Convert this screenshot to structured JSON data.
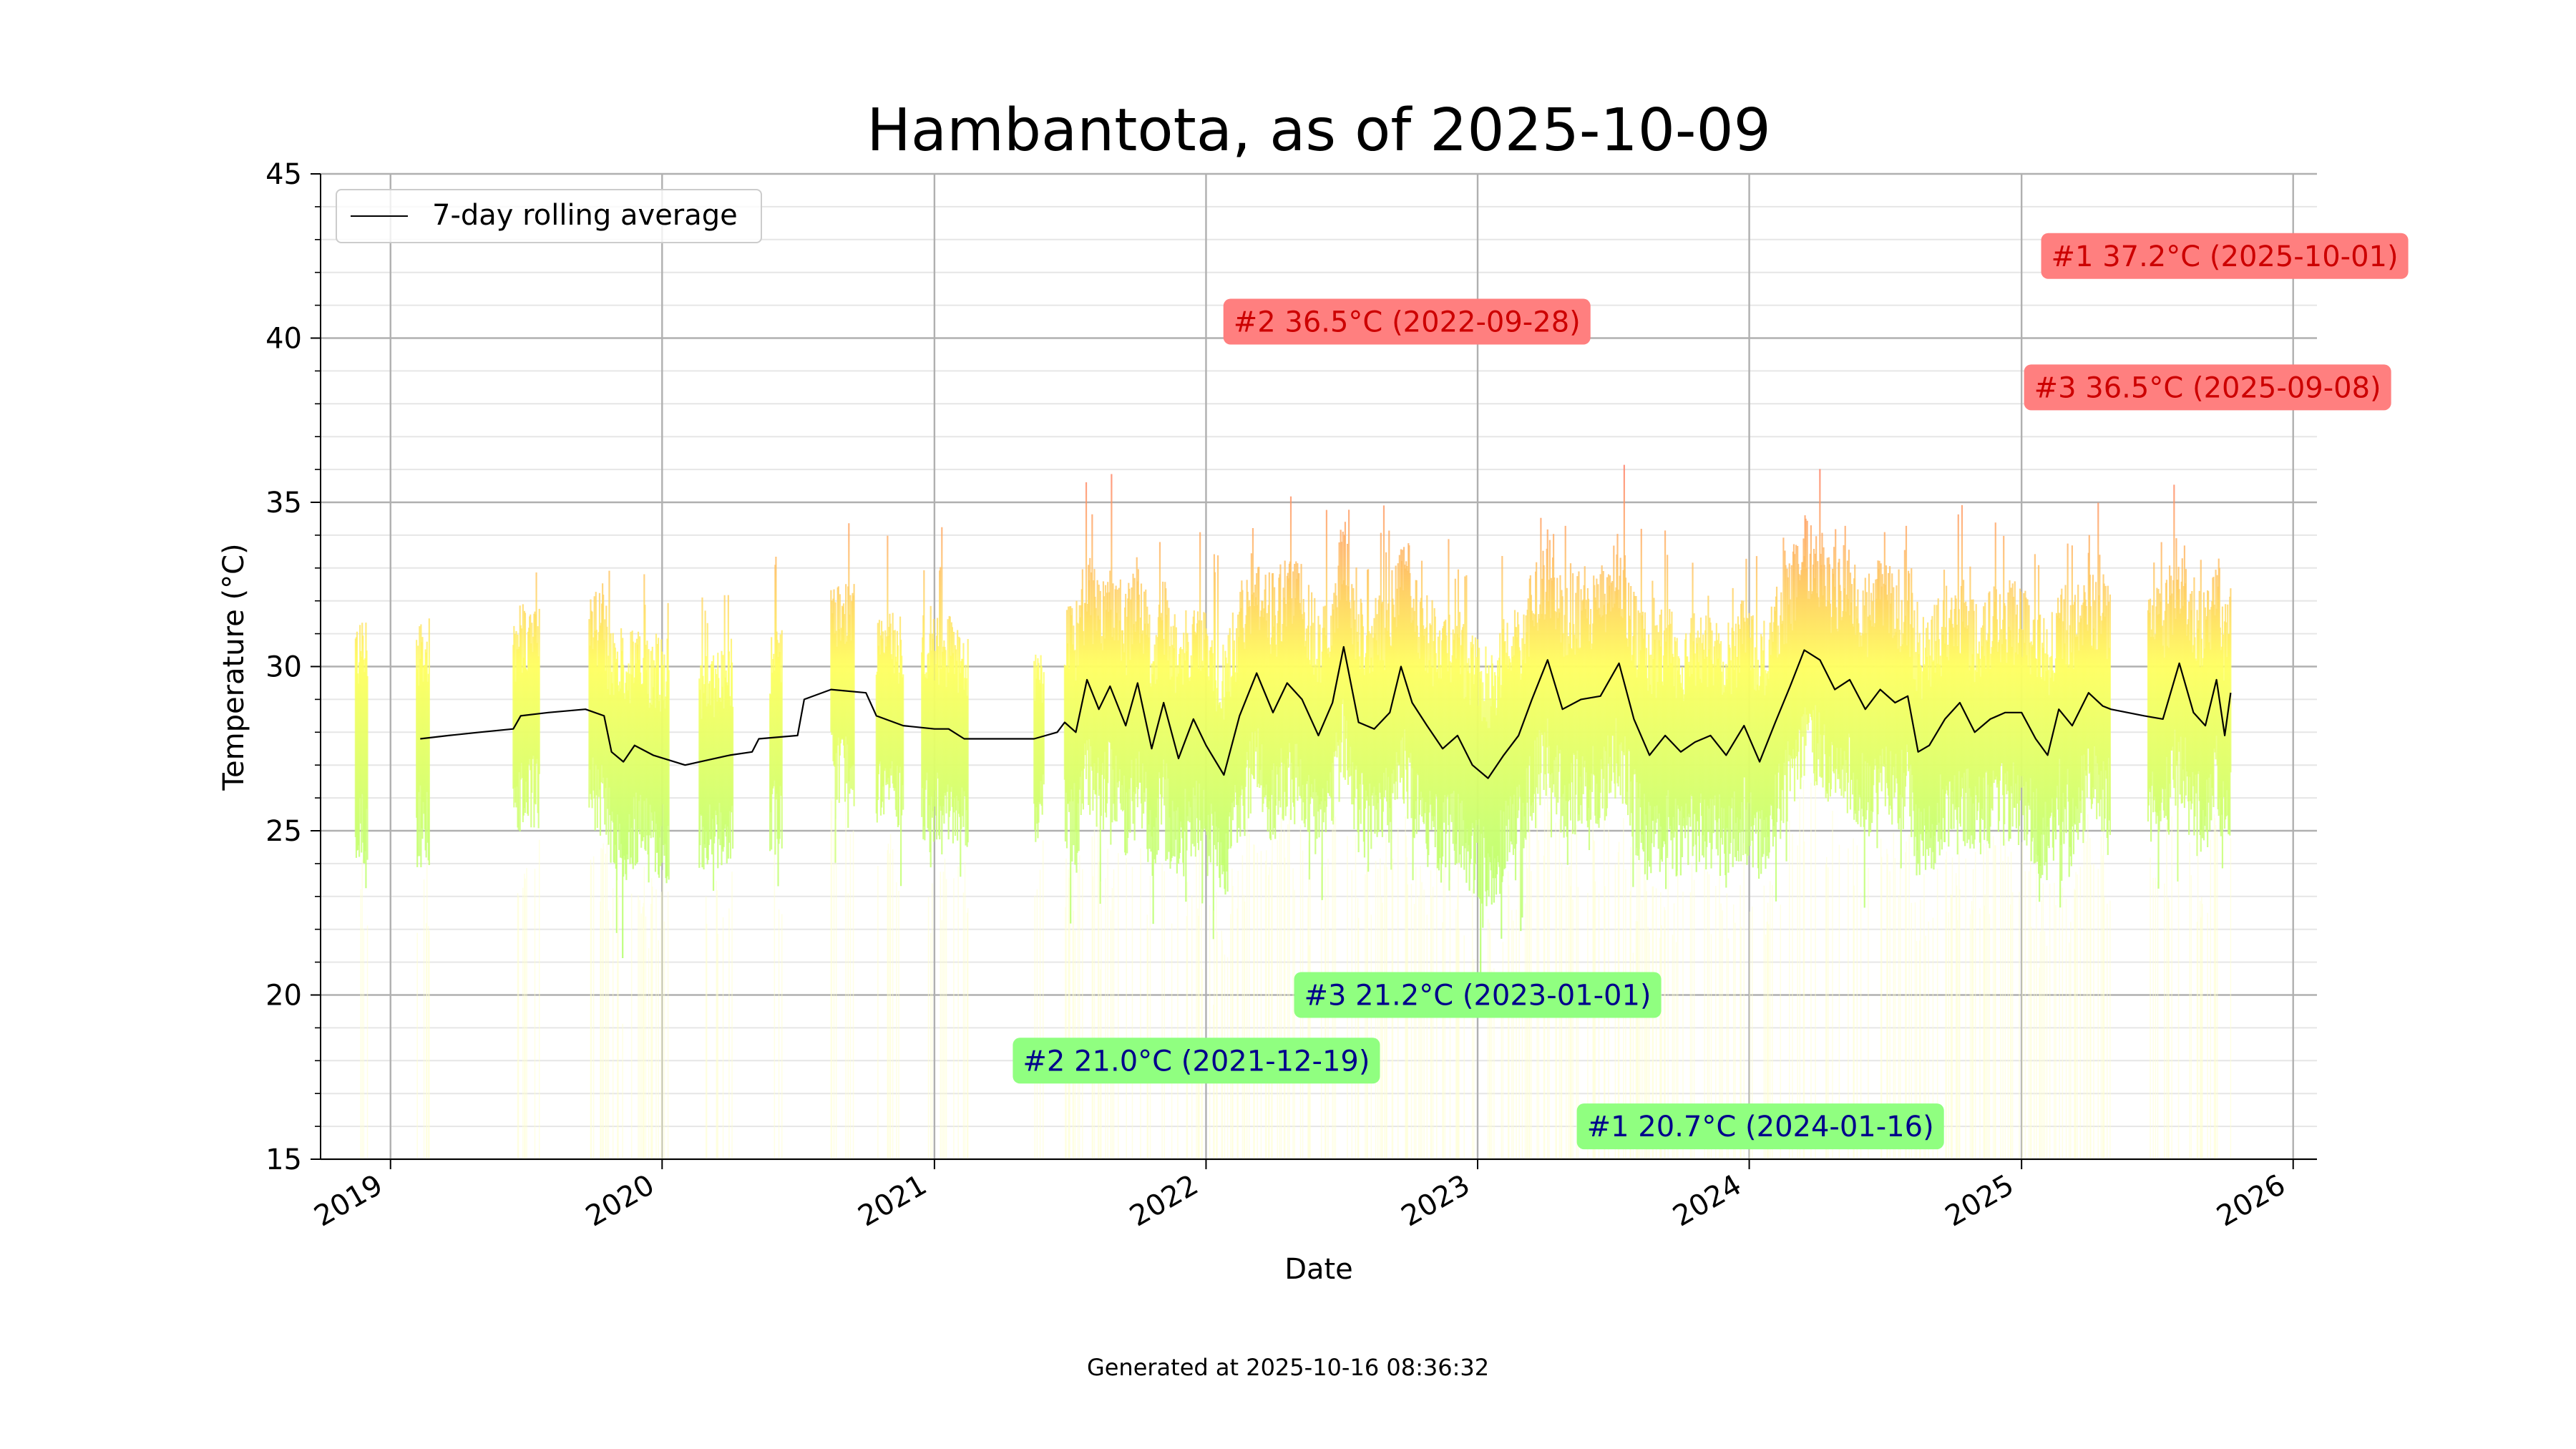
{
  "chart_data": {
    "type": "line",
    "title": "Hambantota, as of 2025-10-09",
    "xlabel": "Date",
    "ylabel": "Temperature (°C)",
    "xlim": [
      "2018-09-29",
      "2026-02-02"
    ],
    "ylim": [
      15,
      45
    ],
    "y_ticks": [
      15,
      20,
      25,
      30,
      35,
      40,
      45
    ],
    "x_ticks": [
      {
        "date": "2019-01-01",
        "label": "2019"
      },
      {
        "date": "2020-01-01",
        "label": "2020"
      },
      {
        "date": "2021-01-01",
        "label": "2021"
      },
      {
        "date": "2022-01-01",
        "label": "2022"
      },
      {
        "date": "2023-01-01",
        "label": "2023"
      },
      {
        "date": "2024-01-01",
        "label": "2024"
      },
      {
        "date": "2025-01-01",
        "label": "2025"
      },
      {
        "date": "2026-01-01",
        "label": "2026"
      }
    ],
    "grid": true,
    "legend": {
      "placement": "top-left",
      "entries": [
        "7-day rolling average"
      ]
    },
    "series": [
      {
        "name": "7-day rolling average",
        "color": "#000000",
        "points": [
          [
            "2019-02-10",
            27.8
          ],
          [
            "2019-03-20",
            27.9
          ],
          [
            "2019-05-01",
            28.0
          ],
          [
            "2019-06-15",
            28.1
          ],
          [
            "2019-06-25",
            28.5
          ],
          [
            "2019-08-01",
            28.6
          ],
          [
            "2019-09-20",
            28.7
          ],
          [
            "2019-10-15",
            28.5
          ],
          [
            "2019-10-25",
            27.4
          ],
          [
            "2019-11-10",
            27.1
          ],
          [
            "2019-11-25",
            27.6
          ],
          [
            "2019-12-20",
            27.3
          ],
          [
            "2020-02-01",
            27.0
          ],
          [
            "2020-04-01",
            27.3
          ],
          [
            "2020-05-01",
            27.4
          ],
          [
            "2020-05-10",
            27.8
          ],
          [
            "2020-07-01",
            27.9
          ],
          [
            "2020-07-10",
            29.0
          ],
          [
            "2020-08-15",
            29.3
          ],
          [
            "2020-10-01",
            29.2
          ],
          [
            "2020-10-15",
            28.5
          ],
          [
            "2020-11-20",
            28.2
          ],
          [
            "2021-01-01",
            28.1
          ],
          [
            "2021-01-20",
            28.1
          ],
          [
            "2021-02-10",
            27.8
          ],
          [
            "2021-05-15",
            27.8
          ],
          [
            "2021-06-15",
            28.0
          ],
          [
            "2021-06-25",
            28.3
          ],
          [
            "2021-07-10",
            28.0
          ],
          [
            "2021-07-25",
            29.6
          ],
          [
            "2021-08-10",
            28.7
          ],
          [
            "2021-08-25",
            29.4
          ],
          [
            "2021-09-15",
            28.2
          ],
          [
            "2021-10-01",
            29.5
          ],
          [
            "2021-10-20",
            27.5
          ],
          [
            "2021-11-05",
            28.9
          ],
          [
            "2021-11-25",
            27.2
          ],
          [
            "2021-12-15",
            28.4
          ],
          [
            "2022-01-01",
            27.6
          ],
          [
            "2022-01-25",
            26.7
          ],
          [
            "2022-02-15",
            28.5
          ],
          [
            "2022-03-10",
            29.8
          ],
          [
            "2022-04-01",
            28.6
          ],
          [
            "2022-04-20",
            29.5
          ],
          [
            "2022-05-10",
            29.0
          ],
          [
            "2022-06-01",
            27.9
          ],
          [
            "2022-06-20",
            28.9
          ],
          [
            "2022-07-05",
            30.6
          ],
          [
            "2022-07-25",
            28.3
          ],
          [
            "2022-08-15",
            28.1
          ],
          [
            "2022-09-05",
            28.6
          ],
          [
            "2022-09-20",
            30.0
          ],
          [
            "2022-10-05",
            28.9
          ],
          [
            "2022-10-25",
            28.2
          ],
          [
            "2022-11-15",
            27.5
          ],
          [
            "2022-12-05",
            27.9
          ],
          [
            "2022-12-25",
            27.0
          ],
          [
            "2023-01-15",
            26.6
          ],
          [
            "2023-02-05",
            27.3
          ],
          [
            "2023-02-25",
            27.9
          ],
          [
            "2023-03-15",
            29.0
          ],
          [
            "2023-04-05",
            30.2
          ],
          [
            "2023-04-25",
            28.7
          ],
          [
            "2023-05-20",
            29.0
          ],
          [
            "2023-06-15",
            29.1
          ],
          [
            "2023-07-10",
            30.1
          ],
          [
            "2023-07-30",
            28.4
          ],
          [
            "2023-08-20",
            27.3
          ],
          [
            "2023-09-10",
            27.9
          ],
          [
            "2023-10-01",
            27.4
          ],
          [
            "2023-10-20",
            27.7
          ],
          [
            "2023-11-10",
            27.9
          ],
          [
            "2023-12-01",
            27.3
          ],
          [
            "2023-12-25",
            28.2
          ],
          [
            "2024-01-15",
            27.1
          ],
          [
            "2024-02-05",
            28.3
          ],
          [
            "2024-02-25",
            29.4
          ],
          [
            "2024-03-15",
            30.5
          ],
          [
            "2024-04-05",
            30.2
          ],
          [
            "2024-04-25",
            29.3
          ],
          [
            "2024-05-15",
            29.6
          ],
          [
            "2024-06-05",
            28.7
          ],
          [
            "2024-06-25",
            29.3
          ],
          [
            "2024-07-15",
            28.9
          ],
          [
            "2024-08-01",
            29.1
          ],
          [
            "2024-08-15",
            27.4
          ],
          [
            "2024-08-30",
            27.6
          ],
          [
            "2024-09-20",
            28.4
          ],
          [
            "2024-10-10",
            28.9
          ],
          [
            "2024-10-30",
            28.0
          ],
          [
            "2024-11-20",
            28.4
          ],
          [
            "2024-12-10",
            28.6
          ],
          [
            "2025-01-01",
            28.6
          ],
          [
            "2025-01-20",
            27.8
          ],
          [
            "2025-02-05",
            27.3
          ],
          [
            "2025-02-20",
            28.7
          ],
          [
            "2025-03-10",
            28.2
          ],
          [
            "2025-04-01",
            29.2
          ],
          [
            "2025-04-20",
            28.8
          ],
          [
            "2025-05-01",
            28.7
          ],
          [
            "2025-06-15",
            28.5
          ],
          [
            "2025-07-10",
            28.4
          ],
          [
            "2025-08-01",
            30.1
          ],
          [
            "2025-08-20",
            28.6
          ],
          [
            "2025-09-05",
            28.2
          ],
          [
            "2025-09-20",
            29.6
          ],
          [
            "2025-10-01",
            27.9
          ],
          [
            "2025-10-09",
            29.2
          ]
        ]
      }
    ],
    "daily_ranges_note": "vertical bars colored by temperature",
    "daily_ranges": {
      "segments": [
        {
          "start": "2018-11-15",
          "end": "2018-12-01",
          "avg": 28.0,
          "spread": 2.8
        },
        {
          "start": "2019-02-05",
          "end": "2019-02-22",
          "avg": 27.8,
          "spread": 2.8
        },
        {
          "start": "2019-06-15",
          "end": "2019-07-20",
          "avg": 28.3,
          "spread": 2.5
        },
        {
          "start": "2019-09-25",
          "end": "2020-01-10",
          "avg": 27.6,
          "spread": 2.7
        },
        {
          "start": "2020-02-20",
          "end": "2020-04-05",
          "avg": 27.6,
          "spread": 2.4
        },
        {
          "start": "2020-05-25",
          "end": "2020-06-10",
          "avg": 28.3,
          "spread": 2.6
        },
        {
          "start": "2020-08-15",
          "end": "2020-09-15",
          "avg": 28.6,
          "spread": 2.5
        },
        {
          "start": "2020-10-15",
          "end": "2020-11-20",
          "avg": 28.3,
          "spread": 2.4
        },
        {
          "start": "2020-12-15",
          "end": "2021-02-15",
          "avg": 27.9,
          "spread": 2.5
        },
        {
          "start": "2021-05-15",
          "end": "2021-05-28",
          "avg": 27.8,
          "spread": 2.0
        },
        {
          "start": "2021-06-25",
          "end": "2025-04-30",
          "avg": 28.4,
          "spread": 2.9
        },
        {
          "start": "2025-06-20",
          "end": "2025-10-09",
          "avg": 28.8,
          "spread": 3.0
        }
      ]
    },
    "annotations": [
      {
        "text": "#1 37.2°C (2025-10-01)",
        "x": "2025-10-01",
        "y": 42.5,
        "kind": "max"
      },
      {
        "text": "#2 36.5°C (2022-09-28)",
        "x": "2022-09-28",
        "y": 40.5,
        "kind": "max"
      },
      {
        "text": "#3 36.5°C (2025-09-08)",
        "x": "2025-09-08",
        "y": 38.5,
        "kind": "max"
      },
      {
        "text": "#1 20.7°C (2024-01-16)",
        "x": "2024-01-16",
        "y": 16.0,
        "kind": "min"
      },
      {
        "text": "#2 21.0°C (2021-12-19)",
        "x": "2021-12-19",
        "y": 18.0,
        "kind": "min"
      },
      {
        "text": "#3 21.2°C (2023-01-01)",
        "x": "2023-01-01",
        "y": 20.0,
        "kind": "min"
      }
    ],
    "colors": {
      "max_box": "#ff7f7f",
      "max_text": "#cc0000",
      "min_box": "#90ff80",
      "min_text": "#00008b",
      "grid_major": "#b0b0b0",
      "grid_minor": "#e6e6e6"
    }
  },
  "footer": {
    "generated": "Generated at 2025-10-16 08:36:32"
  }
}
